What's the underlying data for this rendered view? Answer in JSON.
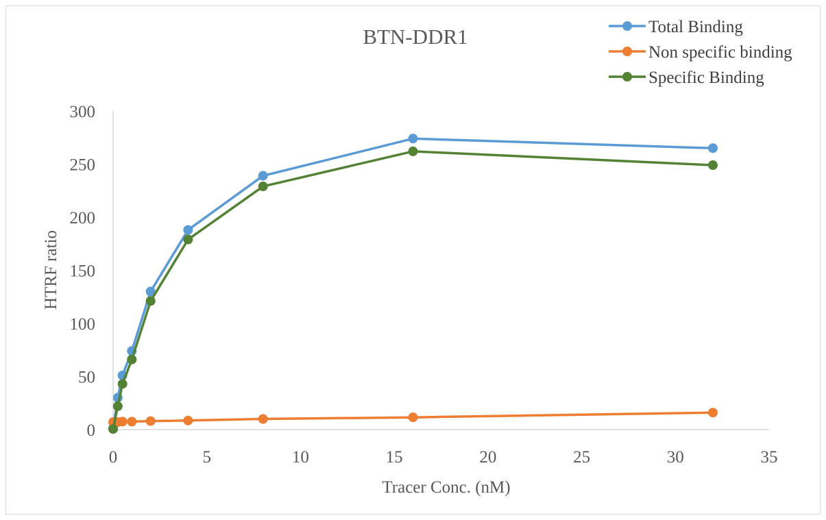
{
  "chart_data": {
    "type": "scatter",
    "title": "BTN-DDR1",
    "xlabel": "Tracer Conc. (nM)",
    "ylabel": "HTRF ratio",
    "xlim": [
      0,
      35
    ],
    "ylim": [
      0,
      300
    ],
    "xticks": [
      0,
      5,
      10,
      15,
      20,
      25,
      30,
      35
    ],
    "yticks": [
      0,
      50,
      100,
      150,
      200,
      250,
      300
    ],
    "grid": false,
    "legend_position": "top-right",
    "lines": true,
    "markers": true,
    "series": [
      {
        "name": "Total Binding",
        "color": "#5B9BD5",
        "x": [
          0,
          0.25,
          0.5,
          1,
          2,
          4,
          8,
          16,
          32
        ],
        "y": [
          1,
          30,
          51,
          74,
          130,
          188,
          239,
          274,
          265
        ]
      },
      {
        "name": "Non specific binding",
        "color": "#ED7D31",
        "x": [
          0,
          0.25,
          0.5,
          1,
          2,
          4,
          8,
          16,
          32
        ],
        "y": [
          7,
          7,
          7.5,
          7.5,
          8,
          8.5,
          10,
          11.5,
          16
        ]
      },
      {
        "name": "Specific Binding",
        "color": "#548235",
        "x": [
          0,
          0.25,
          0.5,
          1,
          2,
          4,
          8,
          16,
          32
        ],
        "y": [
          0.5,
          22,
          43,
          66,
          121,
          179,
          229,
          262,
          249
        ]
      }
    ]
  }
}
